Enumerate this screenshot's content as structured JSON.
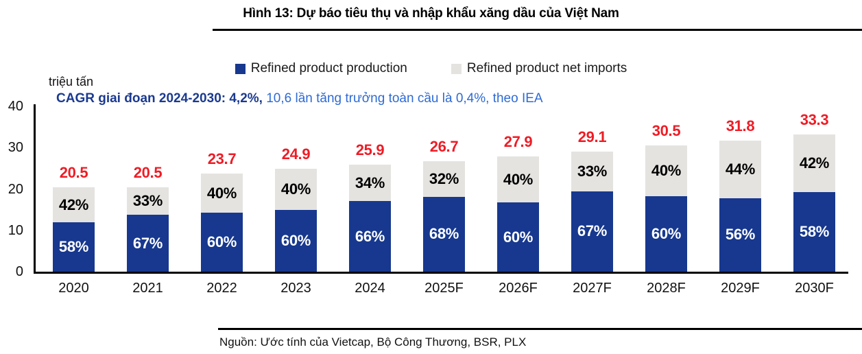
{
  "figure": {
    "title": "Hình 13: Dự báo tiêu thụ và nhập khẩu xăng dầu của Việt Nam",
    "unit_label": "triệu tấn",
    "annotation_bold": "CAGR giai đoạn 2024-2030: 4,2%,",
    "annotation_rest": " 10,6 lần tăng trưởng toàn cầu là 0,4%, theo IEA",
    "source": "Nguồn: Ước tính của Vietcap, Bộ Công Thương, BSR, PLX"
  },
  "legend": [
    {
      "label": "Refined product production",
      "color": "#17388e"
    },
    {
      "label": "Refined product net imports",
      "color": "#e4e3e0"
    }
  ],
  "colors": {
    "production_bar": "#17388e",
    "net_imports_bar": "#e4e3e0",
    "total_label": "#ee1c25",
    "annotation_bold": "#1b3a8f",
    "annotation_rest": "#2e6ad4",
    "axis": "#000000"
  },
  "chart_data": {
    "type": "bar",
    "stacked": true,
    "title": "Hình 13: Dự báo tiêu thụ và nhập khẩu xăng dầu của Việt Nam",
    "ylabel": "triệu tấn",
    "ylim": [
      0,
      40
    ],
    "yticks": [
      0,
      10,
      20,
      30,
      40
    ],
    "grid": false,
    "legend_position": "top",
    "categories": [
      "2020",
      "2021",
      "2022",
      "2023",
      "2024",
      "2025F",
      "2026F",
      "2027F",
      "2028F",
      "2029F",
      "2030F"
    ],
    "totals": [
      20.5,
      20.5,
      23.7,
      24.9,
      25.9,
      26.7,
      27.9,
      29.1,
      30.5,
      31.8,
      33.3
    ],
    "total_labels": [
      "20.5",
      "20.5",
      "23.7",
      "24.9",
      "25.9",
      "26.7",
      "27.9",
      "29.1",
      "30.5",
      "31.8",
      "33.3"
    ],
    "series": [
      {
        "name": "Refined product production",
        "values_pct": [
          58,
          67,
          60,
          60,
          66,
          68,
          60,
          67,
          60,
          56,
          58
        ],
        "pct_labels": [
          "58%",
          "67%",
          "60%",
          "60%",
          "66%",
          "68%",
          "60%",
          "67%",
          "60%",
          "56%",
          "58%"
        ],
        "color": "#17388e",
        "label_color": "#ffffff"
      },
      {
        "name": "Refined product net imports",
        "values_pct": [
          42,
          33,
          40,
          40,
          34,
          32,
          40,
          33,
          40,
          44,
          42
        ],
        "pct_labels": [
          "42%",
          "33%",
          "40%",
          "40%",
          "34%",
          "32%",
          "40%",
          "33%",
          "40%",
          "44%",
          "42%"
        ],
        "color": "#e4e3e0",
        "label_color": "#000000"
      }
    ],
    "annotation": "CAGR giai đoạn 2024-2030: 4,2%, 10,6 lần tăng trưởng toàn cầu là 0,4%, theo IEA",
    "total_label_color": "#ee1c25"
  }
}
